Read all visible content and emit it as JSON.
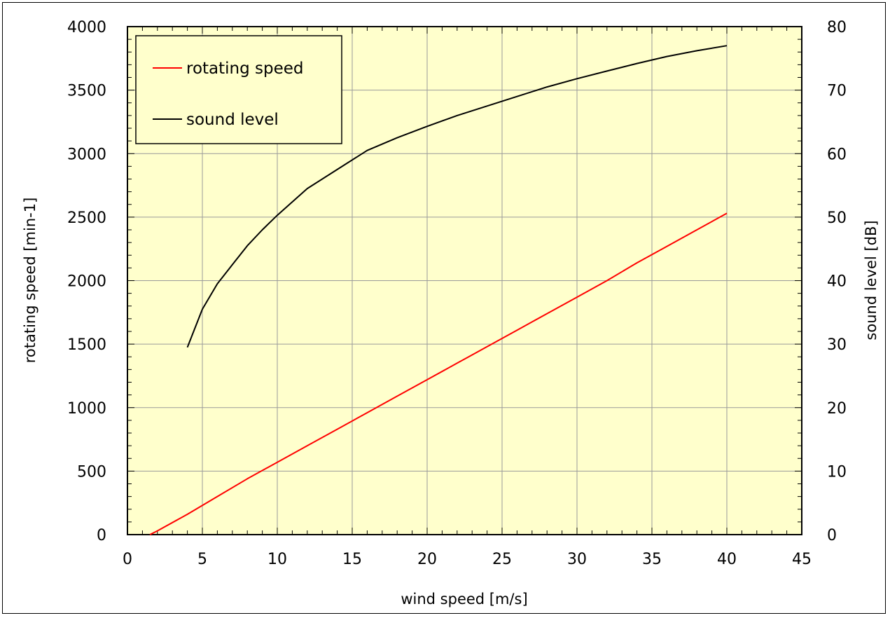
{
  "chart_data": {
    "type": "line",
    "title": "",
    "xlabel": "wind speed [m/s]",
    "ylabel_left": "rotating speed [min-1]",
    "ylabel_right": "sound level [dB]",
    "xlim": [
      0,
      45
    ],
    "ylim_left": [
      0,
      4000
    ],
    "ylim_right": [
      0,
      80
    ],
    "x_ticks": [
      "0",
      "5",
      "10",
      "15",
      "20",
      "25",
      "30",
      "35",
      "40",
      "45"
    ],
    "y_left_ticks": [
      "0",
      "500",
      "1000",
      "1500",
      "2000",
      "2500",
      "3000",
      "3500",
      "4000"
    ],
    "y_right_ticks": [
      "0",
      "10",
      "20",
      "30",
      "40",
      "50",
      "60",
      "70",
      "80"
    ],
    "grid": true,
    "plot_background": "#ffffcc",
    "legend_position": "top-left",
    "series": [
      {
        "name": "rotating speed",
        "axis": "left",
        "color": "#ff0000",
        "x": [
          1.5,
          2,
          4,
          6,
          8,
          10,
          12,
          14,
          16,
          18,
          20,
          22,
          24,
          26,
          28,
          30,
          32,
          34,
          36,
          38,
          40
        ],
        "values": [
          0,
          30,
          160,
          300,
          440,
          570,
          700,
          830,
          960,
          1090,
          1220,
          1350,
          1480,
          1610,
          1740,
          1870,
          2000,
          2140,
          2270,
          2400,
          2530
        ]
      },
      {
        "name": "sound level",
        "axis": "right",
        "color": "#000000",
        "x": [
          4,
          5,
          6,
          7,
          8,
          9,
          10,
          12,
          14,
          16,
          18,
          20,
          22,
          24,
          26,
          28,
          30,
          32,
          34,
          36,
          38,
          40
        ],
        "values": [
          29.5,
          35.5,
          39.5,
          42.5,
          45.5,
          48,
          50.3,
          54.5,
          57.5,
          60.5,
          62.5,
          64.3,
          66,
          67.5,
          69,
          70.5,
          71.8,
          73,
          74.2,
          75.3,
          76.2,
          77
        ]
      }
    ]
  }
}
